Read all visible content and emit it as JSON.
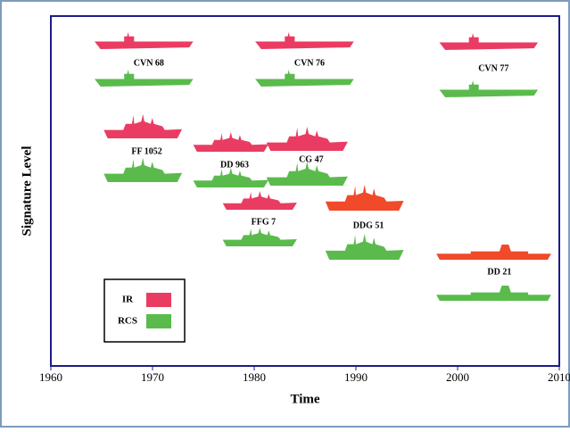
{
  "chart_data": {
    "type": "ship-timeline",
    "x_label": "Time",
    "y_label": "Signature Level",
    "xlim": [
      1960,
      2010
    ],
    "xticks": [
      1960,
      1970,
      1980,
      1990,
      2000,
      2010
    ],
    "series": [
      {
        "name": "IR",
        "color": "#ea3c62"
      },
      {
        "name": "RCS",
        "color": "#5abb4c"
      }
    ],
    "ships": [
      {
        "name": "CVN 68",
        "start": 1964.3,
        "end": 1974.0,
        "ir_color": "#ea3c62"
      },
      {
        "name": "CVN 76",
        "start": 1980.1,
        "end": 1989.8,
        "ir_color": "#ea3c62"
      },
      {
        "name": "CVN 77",
        "start": 1998.2,
        "end": 2007.9,
        "ir_color": "#ea3c62"
      },
      {
        "name": "FF 1052",
        "start": 1965.2,
        "end": 1972.9,
        "ir_color": "#ea3c62"
      },
      {
        "name": "DD 963",
        "start": 1974.0,
        "end": 1981.4,
        "ir_color": "#ea3c62"
      },
      {
        "name": "CG 47",
        "start": 1981.2,
        "end": 1989.2,
        "ir_color": "#ea3c62"
      },
      {
        "name": "FFG 7",
        "start": 1976.9,
        "end": 1984.2,
        "ir_color": "#ea3c62"
      },
      {
        "name": "DDG 51",
        "start": 1987.0,
        "end": 1994.7,
        "ir_color": "#f04a2a"
      },
      {
        "name": "DD 21",
        "start": 1997.9,
        "end": 2009.2,
        "ir_color": "#f04a2a"
      }
    ]
  }
}
